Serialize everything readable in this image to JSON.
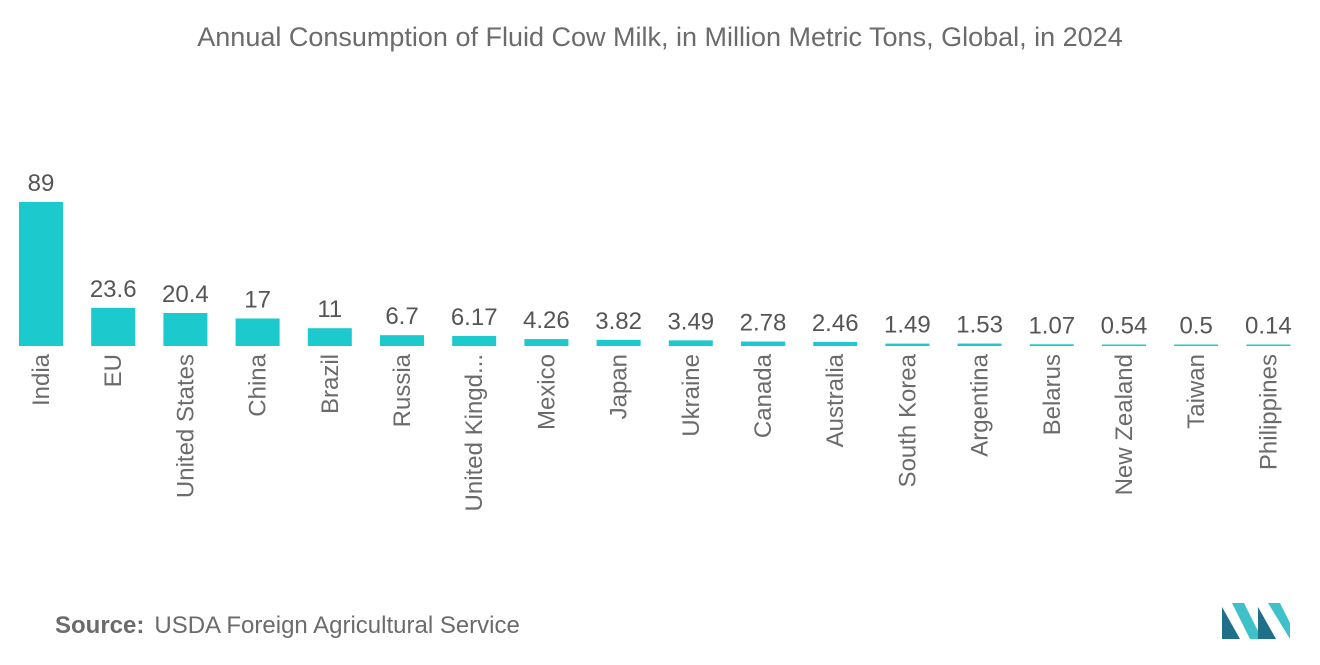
{
  "title": "Annual Consumption of Fluid Cow Milk, in Million Metric Tons, Global, in 2024",
  "source_label": "Source:",
  "source_text": "USDA Foreign Agricultural Service",
  "colors": {
    "bar": "#1cc9cc",
    "text": "#6b6b6b",
    "logo_dark": "#1f6f8b",
    "logo_light": "#3fc1c9"
  },
  "chart_data": {
    "type": "bar",
    "title": "Annual Consumption of Fluid Cow Milk, in Million Metric Tons, Global, in 2024",
    "xlabel": "",
    "ylabel": "",
    "ylim": [
      0,
      89
    ],
    "grid": false,
    "categories": [
      "India",
      "EU",
      "United States",
      "China",
      "Brazil",
      "Russia",
      "United Kingd...",
      "Mexico",
      "Japan",
      "Ukraine",
      "Canada",
      "Australia",
      "South Korea",
      "Argentina",
      "Belarus",
      "New Zealand",
      "Taiwan",
      "Philippines"
    ],
    "values": [
      89,
      23.6,
      20.4,
      17,
      11,
      6.7,
      6.17,
      4.26,
      3.82,
      3.49,
      2.78,
      2.46,
      1.49,
      1.53,
      1.07,
      0.54,
      0.5,
      0.14
    ],
    "value_labels": [
      "89",
      "23.6",
      "20.4",
      "17",
      "11",
      "6.7",
      "6.17",
      "4.26",
      "3.82",
      "3.49",
      "2.78",
      "2.46",
      "1.49",
      "1.53",
      "1.07",
      "0.54",
      "0.5",
      "0.14"
    ]
  }
}
